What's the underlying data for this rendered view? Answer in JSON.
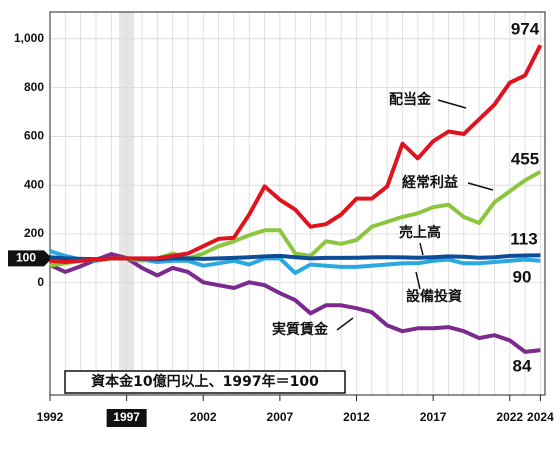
{
  "chart_data": {
    "type": "line",
    "note": "資本金10億円以上、1997年＝100",
    "x": [
      1992,
      1993,
      1994,
      1995,
      1996,
      1997,
      1998,
      1999,
      2000,
      2001,
      2002,
      2003,
      2004,
      2005,
      2006,
      2007,
      2008,
      2009,
      2010,
      2011,
      2012,
      2013,
      2014,
      2015,
      2016,
      2017,
      2018,
      2019,
      2020,
      2021,
      2022,
      2023,
      2024
    ],
    "xlim": [
      1992,
      2024.3
    ],
    "xticks": [
      1992,
      1997,
      2002,
      2007,
      2012,
      2017,
      2022,
      2024
    ],
    "highlight_x": 1997,
    "ylim": [
      -460,
      1110
    ],
    "yticks": [
      0,
      200,
      400,
      600,
      800,
      {
        "value": 1000,
        "label": "1,000"
      }
    ],
    "baseline": 100,
    "y2lim": [
      76.2,
      142.8
    ],
    "grid": true,
    "series": [
      {
        "name": "配当金",
        "color": "#e0141e",
        "values": [
          90,
          85,
          90,
          95,
          100,
          100,
          100,
          100,
          110,
          120,
          150,
          180,
          185,
          280,
          395,
          340,
          300,
          230,
          240,
          280,
          345,
          345,
          395,
          570,
          510,
          580,
          620,
          610,
          670,
          730,
          820,
          850,
          974
        ],
        "value_labels": {
          "32": "974"
        }
      },
      {
        "name": "経常利益",
        "color": "#8cc63f",
        "values": [
          70,
          80,
          90,
          95,
          100,
          100,
          90,
          100,
          120,
          100,
          120,
          150,
          170,
          195,
          215,
          215,
          120,
          110,
          170,
          160,
          175,
          230,
          250,
          270,
          285,
          310,
          320,
          270,
          245,
          330,
          375,
          420,
          455
        ],
        "value_labels": {
          "32": "455"
        }
      },
      {
        "name": "売上高",
        "color": "#0f4c96",
        "values": [
          105,
          100,
          98,
          97,
          100,
          100,
          98,
          96,
          100,
          100,
          98,
          100,
          102,
          105,
          108,
          110,
          105,
          100,
          102,
          102,
          103,
          104,
          105,
          104,
          103,
          105,
          108,
          107,
          103,
          105,
          110,
          112,
          113
        ],
        "value_labels": {
          "32": "113"
        }
      },
      {
        "name": "設備投資",
        "color": "#2ca8e0",
        "values": [
          130,
          110,
          95,
          90,
          100,
          100,
          95,
          85,
          90,
          90,
          70,
          80,
          90,
          75,
          100,
          100,
          40,
          75,
          70,
          65,
          65,
          70,
          75,
          80,
          80,
          90,
          95,
          80,
          80,
          85,
          90,
          95,
          90
        ],
        "value_labels": {
          "32": "90"
        }
      },
      {
        "name": "実質賃金",
        "color": "#7b2a8e",
        "axis": "y2",
        "values": [
          98.8,
          97.6,
          98.6,
          99.7,
          100.7,
          100,
          98.3,
          97,
          98.3,
          97.6,
          95.8,
          95.3,
          94.8,
          95.8,
          95.3,
          93.9,
          92.7,
          90.4,
          91.8,
          91.8,
          91.3,
          90.6,
          88.3,
          87.3,
          87.8,
          87.8,
          88,
          87.3,
          86.1,
          86.6,
          85.7,
          83.7,
          84
        ],
        "value_labels": {
          "32": "84"
        }
      }
    ]
  }
}
